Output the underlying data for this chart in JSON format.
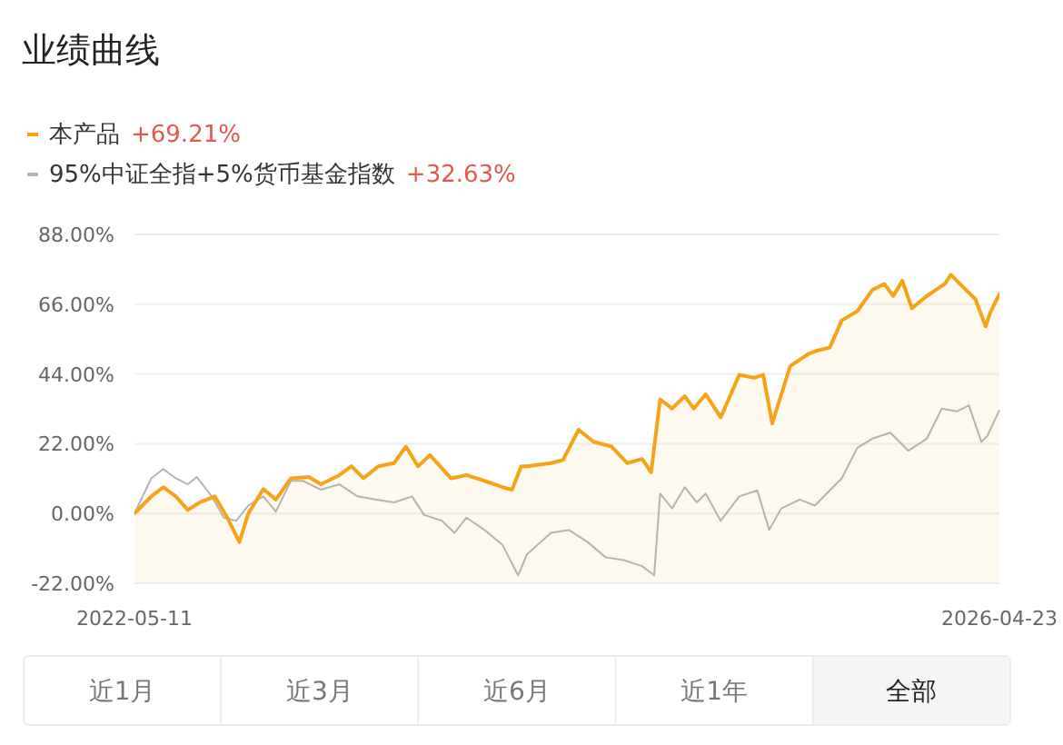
{
  "chart_data": {
    "type": "line",
    "title": "业绩曲线",
    "xlim": [
      "2022-05-11",
      "2026-04-23"
    ],
    "xticks": [
      "2022-05-11",
      "2026-04-23"
    ],
    "ylim": [
      -22,
      88
    ],
    "yticks": [
      {
        "value": -22,
        "label": "-22.00%"
      },
      {
        "value": 0,
        "label": "0.00%"
      },
      {
        "value": 22,
        "label": "22.00%"
      },
      {
        "value": 44,
        "label": "44.00%"
      },
      {
        "value": 66,
        "label": "66.00%"
      },
      {
        "value": 88,
        "label": "88.00%"
      }
    ],
    "grid": "y",
    "legend": "top left",
    "series": [
      {
        "name": "本产品",
        "type": "area",
        "color": "#f5a318",
        "x": [
          "2022-05-11",
          "2022-05-24",
          "2022-06-08",
          "2022-06-28",
          "2022-07-19",
          "2022-08-08",
          "2022-08-28",
          "2022-09-22",
          "2022-10-13",
          "2022-11-02",
          "2022-11-17",
          "2022-12-12",
          "2023-01-02",
          "2023-01-27",
          "2023-02-26",
          "2023-03-18",
          "2023-04-18",
          "2023-05-08",
          "2023-05-28",
          "2023-06-22",
          "2023-07-18",
          "2023-08-07",
          "2023-08-27",
          "2023-09-16",
          "2023-10-21",
          "2023-11-16",
          "2023-12-16",
          "2024-01-15",
          "2024-01-31",
          "2024-02-15",
          "2024-02-25",
          "2024-04-05",
          "2024-04-25",
          "2024-05-21",
          "2024-06-15",
          "2024-07-15",
          "2024-08-10",
          "2024-09-04",
          "2024-09-19",
          "2024-10-04",
          "2024-10-24",
          "2024-11-14",
          "2024-11-29",
          "2024-12-19",
          "2025-01-13",
          "2025-02-13",
          "2025-03-10",
          "2025-03-25",
          "2025-04-09",
          "2025-05-09",
          "2025-06-09",
          "2025-06-24",
          "2025-07-14",
          "2025-08-03",
          "2025-08-29",
          "2025-09-23",
          "2025-10-13",
          "2025-10-28",
          "2025-11-12",
          "2025-11-28",
          "2025-12-23",
          "2026-01-22",
          "2026-02-01",
          "2026-02-21",
          "2026-03-14",
          "2026-03-31",
          "2026-04-08",
          "2026-04-23"
        ],
        "values": [
          0,
          2.5,
          5.4,
          8.3,
          5.4,
          1.1,
          3.5,
          5.4,
          -1.3,
          -9.0,
          0,
          7.7,
          4.4,
          11.1,
          11.5,
          9.2,
          12.1,
          14.9,
          11.1,
          14.9,
          15.9,
          21.1,
          14.9,
          18.4,
          11.1,
          12.1,
          10.3,
          8.3,
          7.5,
          14.9,
          14.9,
          15.9,
          16.9,
          26.4,
          22.6,
          21.1,
          15.9,
          17.2,
          13.0,
          36.0,
          33.1,
          37.0,
          33.1,
          37.6,
          30.3,
          43.7,
          42.8,
          43.7,
          28.4,
          46.5,
          50.4,
          51.4,
          52.3,
          60.9,
          63.8,
          70.5,
          72.4,
          68.6,
          73.4,
          64.7,
          68.6,
          72.4,
          75.3,
          71.5,
          67.6,
          59.0,
          63.5,
          69.21
        ]
      },
      {
        "name": "95%中证全指+5%货币基金指数",
        "color": "#b4b4b8",
        "x": [
          "2022-05-11",
          "2022-06-08",
          "2022-06-28",
          "2022-07-19",
          "2022-08-08",
          "2022-08-23",
          "2022-09-17",
          "2022-10-07",
          "2022-10-28",
          "2022-11-17",
          "2022-12-12",
          "2023-01-02",
          "2023-01-27",
          "2023-02-16",
          "2023-03-18",
          "2023-04-18",
          "2023-05-18",
          "2023-06-17",
          "2023-07-18",
          "2023-08-17",
          "2023-09-06",
          "2023-10-06",
          "2023-10-27",
          "2023-11-16",
          "2023-12-16",
          "2024-01-15",
          "2024-02-10",
          "2024-02-25",
          "2024-04-05",
          "2024-05-05",
          "2024-06-05",
          "2024-07-05",
          "2024-08-04",
          "2024-09-04",
          "2024-09-24",
          "2024-10-04",
          "2024-10-24",
          "2024-11-14",
          "2024-12-04",
          "2024-12-19",
          "2025-01-13",
          "2025-02-13",
          "2025-03-15",
          "2025-04-04",
          "2025-04-24",
          "2025-05-25",
          "2025-06-19",
          "2025-07-14",
          "2025-08-03",
          "2025-08-29",
          "2025-09-23",
          "2025-10-23",
          "2025-11-22",
          "2025-12-23",
          "2026-01-17",
          "2026-02-11",
          "2026-03-03",
          "2026-03-24",
          "2026-04-03",
          "2026-04-23"
        ],
        "values": [
          0,
          11.1,
          14.0,
          11.1,
          9.2,
          11.5,
          5.4,
          -1.3,
          -2.3,
          2.5,
          5.4,
          0.6,
          10.3,
          10.3,
          7.5,
          9.2,
          5.4,
          4.4,
          3.5,
          5.4,
          -0.4,
          -2.3,
          -6.1,
          -1.3,
          -5.2,
          -9.9,
          -19.5,
          -12.8,
          -6.1,
          -5.2,
          -9.0,
          -13.8,
          -14.7,
          -16.6,
          -19.5,
          6.3,
          1.6,
          8.3,
          3.5,
          6.3,
          -2.3,
          5.4,
          7.3,
          -5.2,
          1.6,
          4.4,
          2.5,
          7.3,
          11.1,
          20.7,
          23.6,
          25.5,
          19.8,
          23.6,
          33.1,
          32.2,
          34.1,
          22.6,
          24.5,
          32.63
        ]
      }
    ],
    "annotations": [
      "+69.21%",
      "+32.63%",
      "近1月",
      "近3月",
      "近6月",
      "近1年",
      "全部"
    ]
  }
}
